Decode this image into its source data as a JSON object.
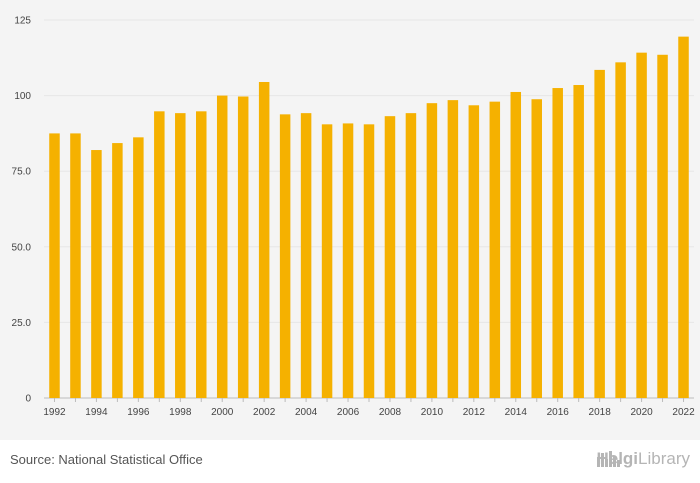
{
  "chart_data": {
    "type": "bar",
    "categories": [
      "1992",
      "1993",
      "1994",
      "1995",
      "1996",
      "1997",
      "1998",
      "1999",
      "2000",
      "2001",
      "2002",
      "2003",
      "2004",
      "2005",
      "2006",
      "2007",
      "2008",
      "2009",
      "2010",
      "2011",
      "2012",
      "2013",
      "2014",
      "2015",
      "2016",
      "2017",
      "2018",
      "2019",
      "2020",
      "2021",
      "2022"
    ],
    "values": [
      87.5,
      87.5,
      82.0,
      84.3,
      86.2,
      94.8,
      94.2,
      94.8,
      100.0,
      99.7,
      104.5,
      93.8,
      94.2,
      90.5,
      90.8,
      90.5,
      93.2,
      94.2,
      97.5,
      98.5,
      96.8,
      98.0,
      101.2,
      98.8,
      102.5,
      103.5,
      108.5,
      111.0,
      114.2,
      113.5,
      119.5
    ],
    "x_tick_labels": [
      "1992",
      "1994",
      "1996",
      "1998",
      "2000",
      "2002",
      "2004",
      "2006",
      "2008",
      "2010",
      "2012",
      "2014",
      "2016",
      "2018",
      "2020",
      "2022"
    ],
    "y_tick_labels": [
      "0",
      "25.0",
      "50.0",
      "75.0",
      "100",
      "125"
    ],
    "y_ticks": [
      0,
      25,
      50,
      75,
      100,
      125
    ],
    "ylim": [
      0,
      125
    ],
    "title": "",
    "xlabel": "",
    "ylabel": "",
    "grid": true,
    "bar_color": "#f5b100"
  },
  "footer": {
    "source": "Source: National Statistical Office",
    "logo_text_bold": "Helgi",
    "logo_text_thin": "Library"
  },
  "colors": {
    "background": "#f4f4f4",
    "grid": "#e6e6e6",
    "bar": "#f5b100",
    "logo": "#b5b5b5"
  },
  "icons": {
    "logo_icon": "city-skyline-icon"
  }
}
